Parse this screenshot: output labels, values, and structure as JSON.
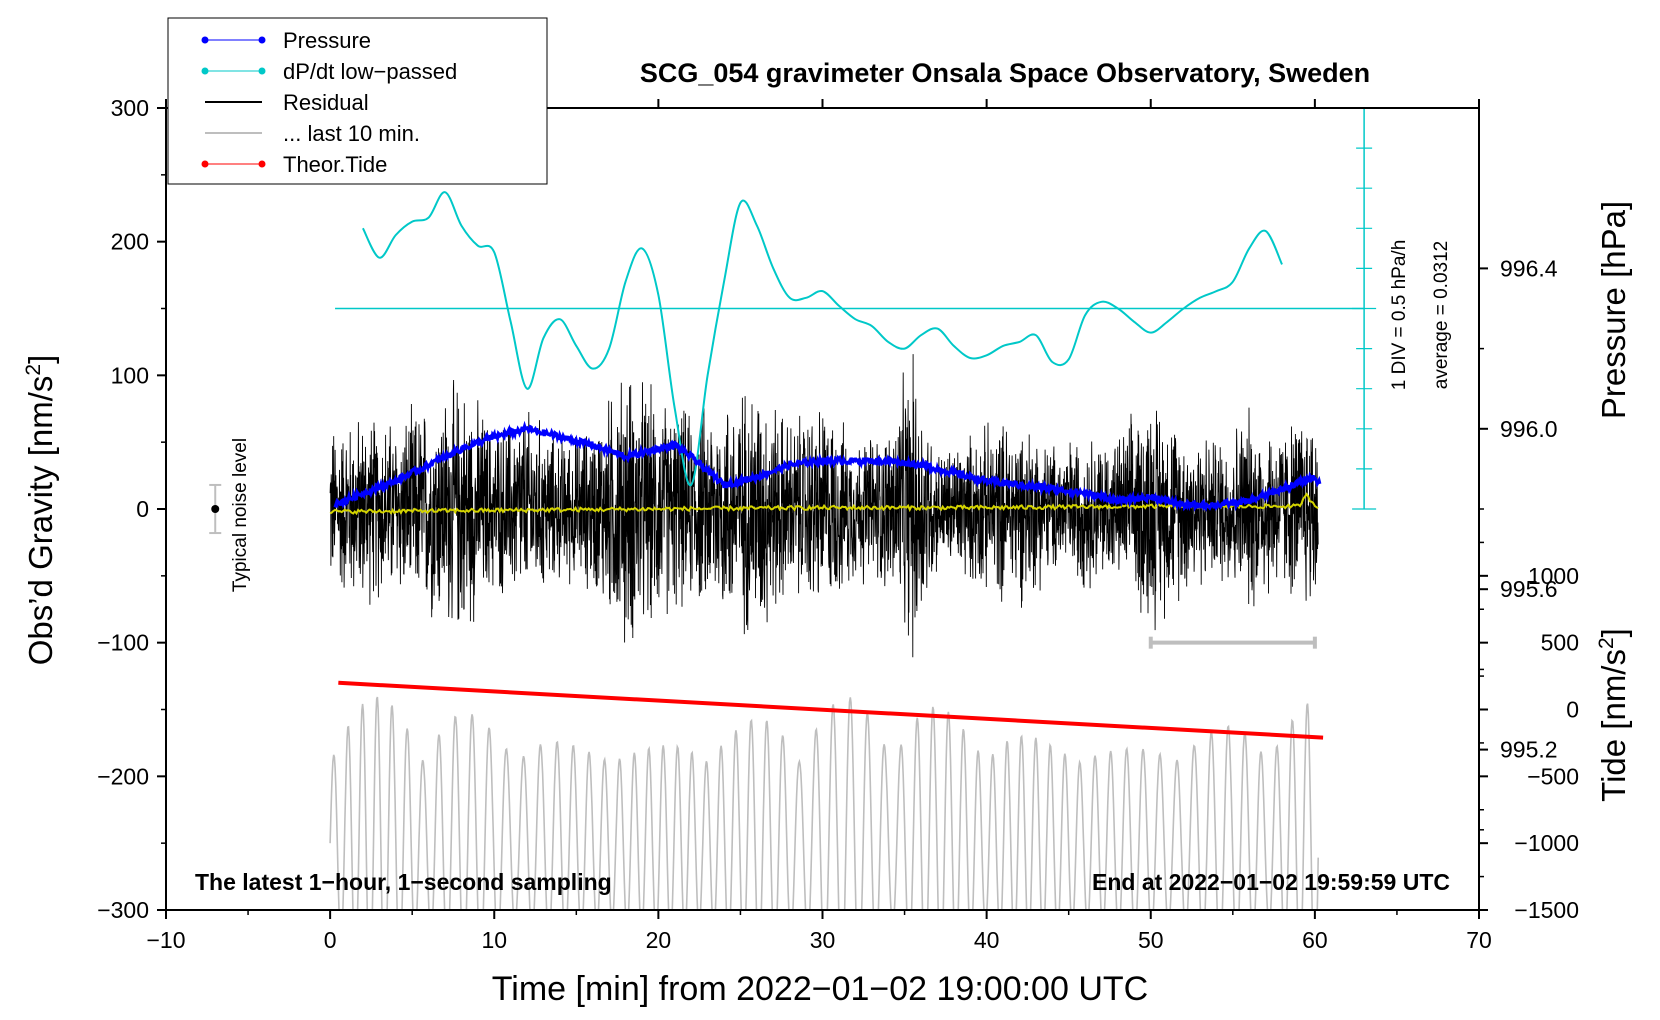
{
  "chart_data": {
    "type": "line",
    "title": "SCG_054 gravimeter Onsala Space Observatory, Sweden",
    "xlabel": "Time [min] from 2022−01−02 19:00:00 UTC",
    "ylabel_left": "Obs’d Gravity [nm/s",
    "ylabel_left_sup": "2",
    "ylabel_left_close": "]",
    "ylabel_right_pressure": "Pressure [hPa]",
    "ylabel_right_tide": "Tide [nm/s",
    "ylabel_right_tide_sup": "2",
    "ylabel_right_tide_close": "]",
    "xlim": [
      -10,
      70
    ],
    "ylim_left": [
      -300,
      300
    ],
    "pressure_lim": [
      994.8,
      996.8
    ],
    "tide_lim": [
      -1500,
      4500
    ],
    "x_ticks": [
      -10,
      0,
      10,
      20,
      30,
      40,
      50,
      60,
      70
    ],
    "x_tick_labels": [
      "−10",
      "0",
      "10",
      "20",
      "30",
      "40",
      "50",
      "60",
      "70"
    ],
    "y_left_ticks": [
      -300,
      -200,
      -100,
      0,
      100,
      200,
      300
    ],
    "y_left_tick_labels": [
      "−300",
      "−200",
      "−100",
      "0",
      "100",
      "200",
      "300"
    ],
    "pressure_ticks": [
      995.2,
      995.6,
      996.0,
      996.4
    ],
    "pressure_tick_labels": [
      "995.2",
      "995.6",
      "996.0",
      "996.4"
    ],
    "tide_ticks": [
      -1500,
      -1000,
      -500,
      0,
      500,
      1000
    ],
    "tide_tick_labels": [
      "−1500",
      "−1000",
      "−500",
      "0",
      "500",
      "1000"
    ],
    "legend": [
      {
        "label": "Pressure",
        "color": "#0000ff",
        "marker": true,
        "lw": 1
      },
      {
        "label": "dP/dt low−passed",
        "color": "#00c8c8",
        "marker": true,
        "lw": 1
      },
      {
        "label": "Residual",
        "color": "#000000",
        "marker": false,
        "lw": 2
      },
      {
        "label": "... last 10 min.",
        "color": "#bebebe",
        "marker": false,
        "lw": 2
      },
      {
        "label": "Theor.Tide",
        "color": "#ff0000",
        "marker": true,
        "lw": 1
      }
    ],
    "legend_position": "top-left",
    "annotation_left": "The latest 1−hour, 1−second sampling",
    "annotation_right": "End at 2022−01−02 19:59:59 UTC",
    "noise_label": "Typical noise level",
    "noise_level": 18,
    "dpdt_scale_label": "1 DIV = 0.5 hPa/h",
    "dpdt_average_label": "average = 0.0312",
    "dpdt_baseline_x": 63,
    "dpdt_baseline_y": 150,
    "dpdt_div_per_label": 0.5,
    "dpdt_div_height": 30,
    "ten_min_bar": {
      "x0": 50,
      "x1": 60,
      "y": -100
    },
    "series": {
      "pressure": {
        "name": "Pressure",
        "color": "#0000ff",
        "x": [
          0.3,
          2,
          4,
          6,
          8,
          10,
          12,
          14,
          16,
          18,
          20,
          21,
          22,
          24,
          26,
          28,
          30,
          32,
          34,
          36,
          38,
          40,
          42,
          44,
          46,
          48,
          50,
          52,
          54,
          56,
          58,
          60,
          60.3
        ],
        "y": [
          995.81,
          995.84,
          995.87,
          995.91,
          995.95,
          995.98,
          996.0,
          995.98,
          995.96,
          995.93,
          995.95,
          995.96,
          995.93,
          995.86,
          995.88,
          995.91,
          995.92,
          995.92,
          995.92,
          995.91,
          995.89,
          995.87,
          995.86,
          995.85,
          995.84,
          995.82,
          995.83,
          995.81,
          995.81,
          995.82,
          995.85,
          995.88,
          995.86
        ]
      },
      "dpdt": {
        "name": "dP/dt low−passed",
        "color": "#00c8c8",
        "x": [
          2,
          3,
          4,
          5,
          6,
          7,
          8,
          9,
          10,
          11,
          12,
          13,
          14,
          15,
          16,
          17,
          18,
          19,
          20,
          21,
          22,
          23,
          24,
          25,
          26,
          27,
          28,
          29,
          30,
          31,
          32,
          33,
          34,
          35,
          36,
          37,
          38,
          39,
          40,
          41,
          42,
          43,
          44,
          45,
          46,
          47,
          48,
          49,
          50,
          51,
          52,
          53,
          54,
          55,
          56,
          57,
          58
        ],
        "y": [
          210,
          188,
          205,
          215,
          218,
          237,
          212,
          197,
          192,
          140,
          90,
          128,
          142,
          122,
          105,
          120,
          170,
          195,
          160,
          75,
          18,
          100,
          170,
          229,
          212,
          180,
          158,
          158,
          163,
          152,
          142,
          137,
          125,
          120,
          130,
          135,
          122,
          113,
          115,
          122,
          125,
          130,
          110,
          112,
          145,
          155,
          150,
          140,
          132,
          140,
          150,
          158,
          163,
          170,
          195,
          208,
          183
        ]
      },
      "residual": {
        "name": "Residual",
        "color": "#000000",
        "x": [
          0,
          60.2
        ],
        "envelope": [
          [
            0,
            70
          ],
          [
            2,
            80
          ],
          [
            4,
            75
          ],
          [
            6,
            90
          ],
          [
            8,
            110
          ],
          [
            10,
            70
          ],
          [
            12,
            85
          ],
          [
            14,
            60
          ],
          [
            16,
            70
          ],
          [
            18,
            120
          ],
          [
            20,
            95
          ],
          [
            22,
            80
          ],
          [
            24,
            95
          ],
          [
            26,
            110
          ],
          [
            28,
            75
          ],
          [
            30,
            90
          ],
          [
            32,
            60
          ],
          [
            34,
            70
          ],
          [
            35.5,
            130
          ],
          [
            37,
            50
          ],
          [
            40,
            70
          ],
          [
            42,
            80
          ],
          [
            44,
            55
          ],
          [
            46,
            65
          ],
          [
            48,
            60
          ],
          [
            50,
            100
          ],
          [
            52,
            70
          ],
          [
            54,
            60
          ],
          [
            56,
            85
          ],
          [
            58,
            70
          ],
          [
            60,
            90
          ]
        ]
      },
      "last10": {
        "name": "... last 10 min.",
        "color": "#bebebe",
        "x": [
          0,
          60.2
        ],
        "center": -1000,
        "amplitude": 1100
      },
      "theor_tide": {
        "name": "Theor.Tide",
        "color": "#ff0000",
        "x": [
          0.5,
          60.5
        ],
        "y": [
          200,
          -210
        ]
      },
      "yellow_mean": {
        "color": "#d4d400",
        "x": [
          0,
          10,
          20,
          30,
          40,
          50,
          59,
          59.5,
          60,
          60.2
        ],
        "y": [
          -2,
          -1,
          0,
          1,
          1,
          2,
          2,
          10,
          3,
          2
        ]
      }
    }
  }
}
